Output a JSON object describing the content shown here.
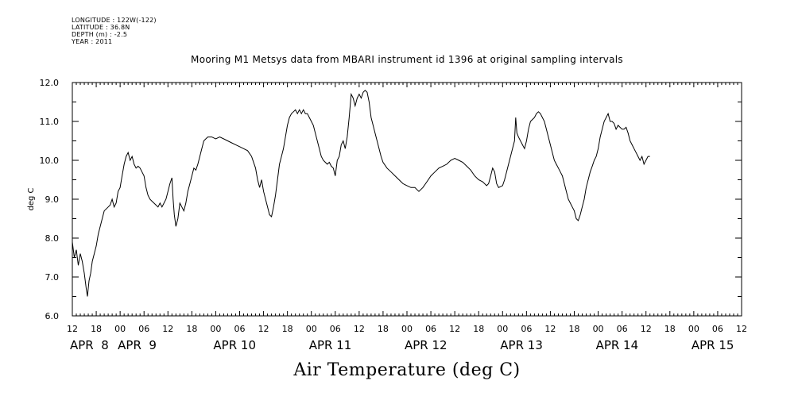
{
  "header": {
    "lines": [
      "LONGITUDE : 122W(-122)",
      "LATITUDE : 36.8N",
      "DEPTH (m) : -2.5",
      "YEAR : 2011"
    ]
  },
  "chart_data": {
    "type": "line",
    "title": "Mooring M1 Metsys data from MBARI instrument id 1396 at original sampling intervals",
    "xlabel": "Air Temperature (deg C)",
    "ylabel": "deg C",
    "ylim": [
      6.0,
      12.0
    ],
    "yticks": [
      "6.0",
      "7.0",
      "8.0",
      "9.0",
      "10.0",
      "11.0",
      "12.0"
    ],
    "x_unit": "hours since APR 8 00",
    "xlim": [
      12,
      180
    ],
    "xtick_labels": [
      "12",
      "18",
      "00",
      "06",
      "12",
      "18",
      "00",
      "06",
      "12",
      "18",
      "00",
      "06",
      "12",
      "18",
      "00",
      "06",
      "12",
      "18",
      "00",
      "06",
      "12",
      "18",
      "00",
      "06",
      "12",
      "18",
      "00",
      "06",
      "12"
    ],
    "day_labels": [
      {
        "label": "APR  8",
        "day_start": 0
      },
      {
        "label": "APR  9",
        "day_start": 24
      },
      {
        "label": "APR 10",
        "day_start": 48
      },
      {
        "label": "APR 11",
        "day_start": 72
      },
      {
        "label": "APR 12",
        "day_start": 96
      },
      {
        "label": "APR 13",
        "day_start": 120
      },
      {
        "label": "APR 14",
        "day_start": 144
      },
      {
        "label": "APR 15",
        "day_start": 168
      }
    ],
    "grid": false,
    "series": [
      {
        "points": [
          [
            12.0,
            7.9
          ],
          [
            12.5,
            7.5
          ],
          [
            13.0,
            7.7
          ],
          [
            13.5,
            7.3
          ],
          [
            14.0,
            7.6
          ],
          [
            14.5,
            7.4
          ],
          [
            15.0,
            7.1
          ],
          [
            15.5,
            6.7
          ],
          [
            15.8,
            6.5
          ],
          [
            16.2,
            6.9
          ],
          [
            16.6,
            7.1
          ],
          [
            17.0,
            7.4
          ],
          [
            17.5,
            7.6
          ],
          [
            18.0,
            7.8
          ],
          [
            18.5,
            8.1
          ],
          [
            19.0,
            8.3
          ],
          [
            19.5,
            8.5
          ],
          [
            20.0,
            8.7
          ],
          [
            20.5,
            8.75
          ],
          [
            21.0,
            8.8
          ],
          [
            21.5,
            8.85
          ],
          [
            22.0,
            9.0
          ],
          [
            22.5,
            8.8
          ],
          [
            23.0,
            8.9
          ],
          [
            23.5,
            9.2
          ],
          [
            24.0,
            9.3
          ],
          [
            24.5,
            9.6
          ],
          [
            25.0,
            9.9
          ],
          [
            25.5,
            10.1
          ],
          [
            26.0,
            10.2
          ],
          [
            26.5,
            10.0
          ],
          [
            27.0,
            10.1
          ],
          [
            27.5,
            9.9
          ],
          [
            28.0,
            9.8
          ],
          [
            28.5,
            9.85
          ],
          [
            29.0,
            9.8
          ],
          [
            29.5,
            9.7
          ],
          [
            30.0,
            9.6
          ],
          [
            30.5,
            9.3
          ],
          [
            31.0,
            9.1
          ],
          [
            31.5,
            9.0
          ],
          [
            32.0,
            8.95
          ],
          [
            32.5,
            8.9
          ],
          [
            33.0,
            8.85
          ],
          [
            33.5,
            8.8
          ],
          [
            34.0,
            8.9
          ],
          [
            34.5,
            8.8
          ],
          [
            35.0,
            8.9
          ],
          [
            35.5,
            9.0
          ],
          [
            36.0,
            9.2
          ],
          [
            36.5,
            9.4
          ],
          [
            37.0,
            9.55
          ],
          [
            37.3,
            9.0
          ],
          [
            37.6,
            8.6
          ],
          [
            38.0,
            8.3
          ],
          [
            38.5,
            8.5
          ],
          [
            39.0,
            8.9
          ],
          [
            39.5,
            8.8
          ],
          [
            40.0,
            8.7
          ],
          [
            40.5,
            8.9
          ],
          [
            41.0,
            9.2
          ],
          [
            41.5,
            9.4
          ],
          [
            42.0,
            9.6
          ],
          [
            42.5,
            9.8
          ],
          [
            43.0,
            9.75
          ],
          [
            43.5,
            9.9
          ],
          [
            44.0,
            10.1
          ],
          [
            44.5,
            10.3
          ],
          [
            45.0,
            10.5
          ],
          [
            45.5,
            10.55
          ],
          [
            46.0,
            10.6
          ],
          [
            47.0,
            10.6
          ],
          [
            48.0,
            10.55
          ],
          [
            49.0,
            10.6
          ],
          [
            50.0,
            10.55
          ],
          [
            51.0,
            10.5
          ],
          [
            52.0,
            10.45
          ],
          [
            53.0,
            10.4
          ],
          [
            54.0,
            10.35
          ],
          [
            55.0,
            10.3
          ],
          [
            56.0,
            10.25
          ],
          [
            57.0,
            10.1
          ],
          [
            58.0,
            9.8
          ],
          [
            58.5,
            9.5
          ],
          [
            59.0,
            9.3
          ],
          [
            59.5,
            9.5
          ],
          [
            60.0,
            9.2
          ],
          [
            60.5,
            9.0
          ],
          [
            61.0,
            8.8
          ],
          [
            61.5,
            8.6
          ],
          [
            62.0,
            8.55
          ],
          [
            62.5,
            8.8
          ],
          [
            63.0,
            9.1
          ],
          [
            63.5,
            9.5
          ],
          [
            64.0,
            9.9
          ],
          [
            64.5,
            10.1
          ],
          [
            65.0,
            10.3
          ],
          [
            65.5,
            10.6
          ],
          [
            66.0,
            10.9
          ],
          [
            66.5,
            11.1
          ],
          [
            67.0,
            11.2
          ],
          [
            67.5,
            11.25
          ],
          [
            68.0,
            11.3
          ],
          [
            68.5,
            11.2
          ],
          [
            69.0,
            11.3
          ],
          [
            69.5,
            11.2
          ],
          [
            70.0,
            11.3
          ],
          [
            70.5,
            11.2
          ],
          [
            71.0,
            11.2
          ],
          [
            71.5,
            11.1
          ],
          [
            72.0,
            11.0
          ],
          [
            72.5,
            10.9
          ],
          [
            73.0,
            10.7
          ],
          [
            73.5,
            10.5
          ],
          [
            74.0,
            10.3
          ],
          [
            74.5,
            10.1
          ],
          [
            75.0,
            10.0
          ],
          [
            75.5,
            9.95
          ],
          [
            76.0,
            9.9
          ],
          [
            76.5,
            9.95
          ],
          [
            77.0,
            9.85
          ],
          [
            77.5,
            9.8
          ],
          [
            78.0,
            9.6
          ],
          [
            78.5,
            10.0
          ],
          [
            79.0,
            10.1
          ],
          [
            79.5,
            10.4
          ],
          [
            80.0,
            10.5
          ],
          [
            80.5,
            10.3
          ],
          [
            81.0,
            10.6
          ],
          [
            81.5,
            11.1
          ],
          [
            82.0,
            11.7
          ],
          [
            82.5,
            11.6
          ],
          [
            83.0,
            11.4
          ],
          [
            83.5,
            11.6
          ],
          [
            84.0,
            11.7
          ],
          [
            84.5,
            11.6
          ],
          [
            85.0,
            11.75
          ],
          [
            85.5,
            11.8
          ],
          [
            86.0,
            11.75
          ],
          [
            86.5,
            11.5
          ],
          [
            87.0,
            11.1
          ],
          [
            87.5,
            10.9
          ],
          [
            88.0,
            10.7
          ],
          [
            88.5,
            10.5
          ],
          [
            89.0,
            10.3
          ],
          [
            89.5,
            10.1
          ],
          [
            90.0,
            9.95
          ],
          [
            91.0,
            9.8
          ],
          [
            92.0,
            9.7
          ],
          [
            93.0,
            9.6
          ],
          [
            94.0,
            9.5
          ],
          [
            95.0,
            9.4
          ],
          [
            96.0,
            9.35
          ],
          [
            97.0,
            9.3
          ],
          [
            98.0,
            9.3
          ],
          [
            98.5,
            9.25
          ],
          [
            99.0,
            9.2
          ],
          [
            100.0,
            9.3
          ],
          [
            101.0,
            9.45
          ],
          [
            102.0,
            9.6
          ],
          [
            103.0,
            9.7
          ],
          [
            104.0,
            9.8
          ],
          [
            105.0,
            9.85
          ],
          [
            106.0,
            9.9
          ],
          [
            107.0,
            10.0
          ],
          [
            108.0,
            10.05
          ],
          [
            109.0,
            10.0
          ],
          [
            110.0,
            9.95
          ],
          [
            111.0,
            9.85
          ],
          [
            112.0,
            9.75
          ],
          [
            113.0,
            9.6
          ],
          [
            114.0,
            9.5
          ],
          [
            115.0,
            9.45
          ],
          [
            116.0,
            9.35
          ],
          [
            116.5,
            9.4
          ],
          [
            117.0,
            9.6
          ],
          [
            117.5,
            9.8
          ],
          [
            118.0,
            9.7
          ],
          [
            118.5,
            9.4
          ],
          [
            119.0,
            9.3
          ],
          [
            120.0,
            9.35
          ],
          [
            120.5,
            9.5
          ],
          [
            121.0,
            9.7
          ],
          [
            121.5,
            9.9
          ],
          [
            122.0,
            10.1
          ],
          [
            122.5,
            10.3
          ],
          [
            123.0,
            10.5
          ],
          [
            123.3,
            11.1
          ],
          [
            123.6,
            10.7
          ],
          [
            124.0,
            10.6
          ],
          [
            125.0,
            10.4
          ],
          [
            125.5,
            10.3
          ],
          [
            126.0,
            10.5
          ],
          [
            126.5,
            10.8
          ],
          [
            127.0,
            11.0
          ],
          [
            127.5,
            11.05
          ],
          [
            128.0,
            11.1
          ],
          [
            128.5,
            11.2
          ],
          [
            129.0,
            11.25
          ],
          [
            129.5,
            11.2
          ],
          [
            130.0,
            11.1
          ],
          [
            130.5,
            11.0
          ],
          [
            131.0,
            10.8
          ],
          [
            131.5,
            10.6
          ],
          [
            132.0,
            10.4
          ],
          [
            132.5,
            10.2
          ],
          [
            133.0,
            10.0
          ],
          [
            133.5,
            9.9
          ],
          [
            134.0,
            9.8
          ],
          [
            134.5,
            9.7
          ],
          [
            135.0,
            9.6
          ],
          [
            135.5,
            9.4
          ],
          [
            136.0,
            9.2
          ],
          [
            136.5,
            9.0
          ],
          [
            137.0,
            8.9
          ],
          [
            137.5,
            8.8
          ],
          [
            138.0,
            8.7
          ],
          [
            138.5,
            8.5
          ],
          [
            139.0,
            8.45
          ],
          [
            139.5,
            8.6
          ],
          [
            140.0,
            8.8
          ],
          [
            140.5,
            9.0
          ],
          [
            141.0,
            9.3
          ],
          [
            141.5,
            9.5
          ],
          [
            142.0,
            9.7
          ],
          [
            142.5,
            9.85
          ],
          [
            143.0,
            10.0
          ],
          [
            143.5,
            10.1
          ],
          [
            144.0,
            10.3
          ],
          [
            144.5,
            10.6
          ],
          [
            145.0,
            10.8
          ],
          [
            145.5,
            11.0
          ],
          [
            146.0,
            11.1
          ],
          [
            146.5,
            11.2
          ],
          [
            147.0,
            11.0
          ],
          [
            147.5,
            11.0
          ],
          [
            148.0,
            10.95
          ],
          [
            148.5,
            10.8
          ],
          [
            149.0,
            10.9
          ],
          [
            149.5,
            10.85
          ],
          [
            150.0,
            10.8
          ],
          [
            150.5,
            10.8
          ],
          [
            151.0,
            10.85
          ],
          [
            151.5,
            10.7
          ],
          [
            152.0,
            10.5
          ],
          [
            152.5,
            10.4
          ],
          [
            153.0,
            10.3
          ],
          [
            153.5,
            10.2
          ],
          [
            154.0,
            10.1
          ],
          [
            154.5,
            10.0
          ],
          [
            155.0,
            10.1
          ],
          [
            155.5,
            9.9
          ],
          [
            156.0,
            10.0
          ],
          [
            156.5,
            10.1
          ],
          [
            157.0,
            10.1
          ]
        ]
      }
    ]
  }
}
